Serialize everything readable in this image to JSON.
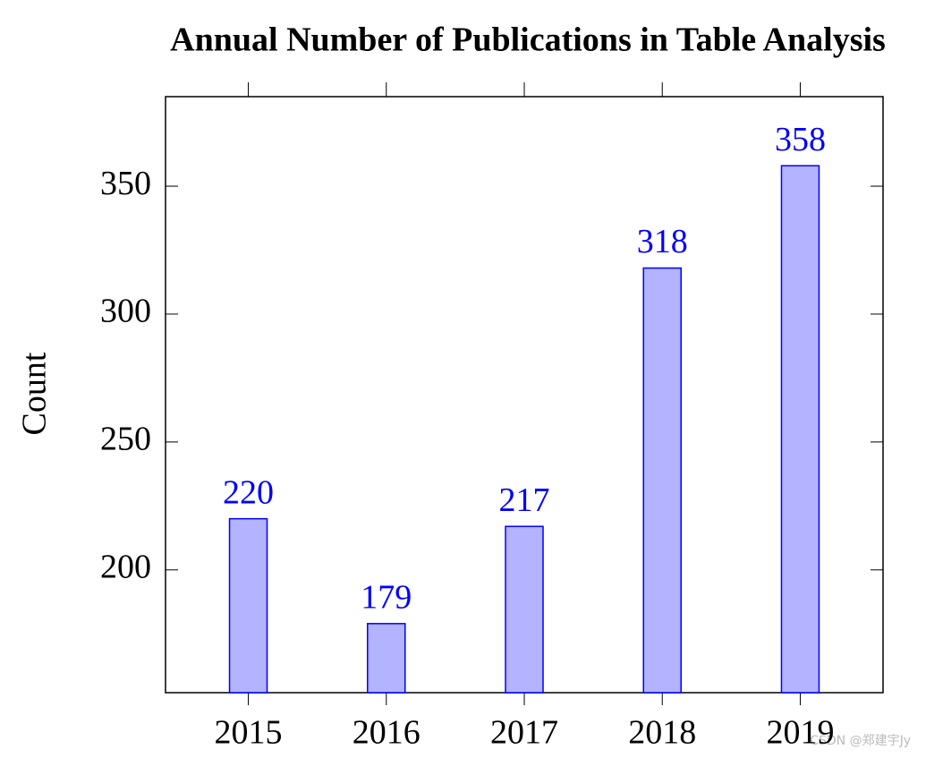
{
  "chart_data": {
    "type": "bar",
    "title": "Annual Number of Publications in Table Analysis",
    "ylabel": "Count",
    "categories": [
      "2015",
      "2016",
      "2017",
      "2018",
      "2019"
    ],
    "values": [
      220,
      179,
      217,
      318,
      358
    ],
    "color": "#0000ff",
    "fill": "#b3b3ff",
    "ylim": [
      152,
      385
    ],
    "yticks": [
      200,
      250,
      300,
      350
    ],
    "watermark": "CSDN @郑建宇Jy"
  }
}
